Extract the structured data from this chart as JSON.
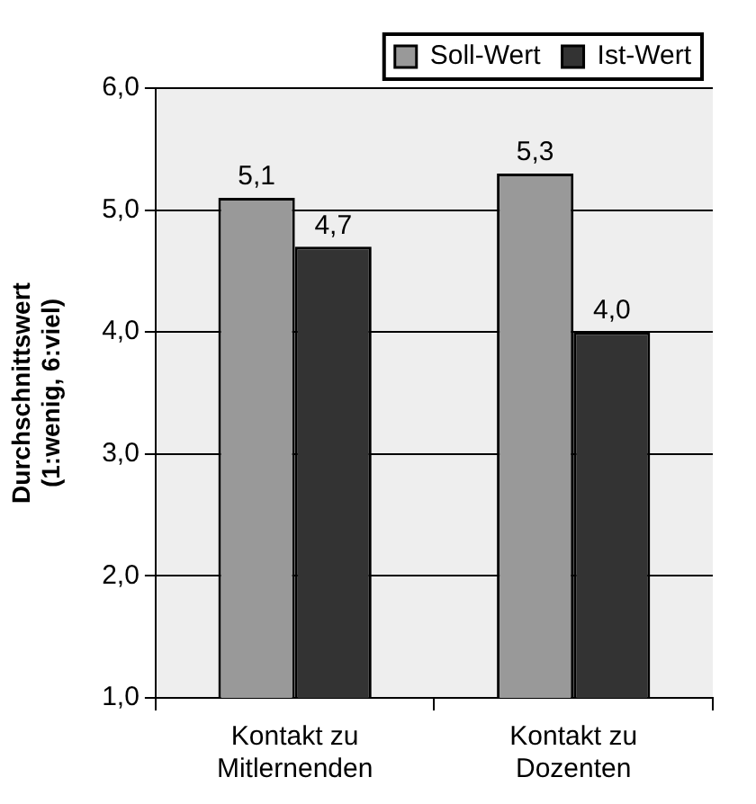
{
  "chart_data": {
    "type": "bar",
    "ylabel": "Durchschnittswert (1:wenig, 6:viel)",
    "categories": [
      "Kontakt zu Mitlernenden",
      "Kontakt zu Dozenten"
    ],
    "series": [
      {
        "name": "Soll-Wert",
        "color": "#999999",
        "values": [
          5.1,
          5.3
        ],
        "value_labels": [
          "5,1",
          "5,3"
        ]
      },
      {
        "name": "Ist-Wert",
        "color": "#333333",
        "values": [
          4.7,
          4.0
        ],
        "value_labels": [
          "4,7",
          "4,0"
        ]
      }
    ],
    "ylim": [
      1,
      6
    ],
    "yticks": [
      {
        "value": 1,
        "label": "1,0"
      },
      {
        "value": 2,
        "label": "2,0"
      },
      {
        "value": 3,
        "label": "3,0"
      },
      {
        "value": 4,
        "label": "4,0"
      },
      {
        "value": 5,
        "label": "5,0"
      },
      {
        "value": 6,
        "label": "6,0"
      }
    ],
    "grid": "y",
    "legend": "top right"
  }
}
